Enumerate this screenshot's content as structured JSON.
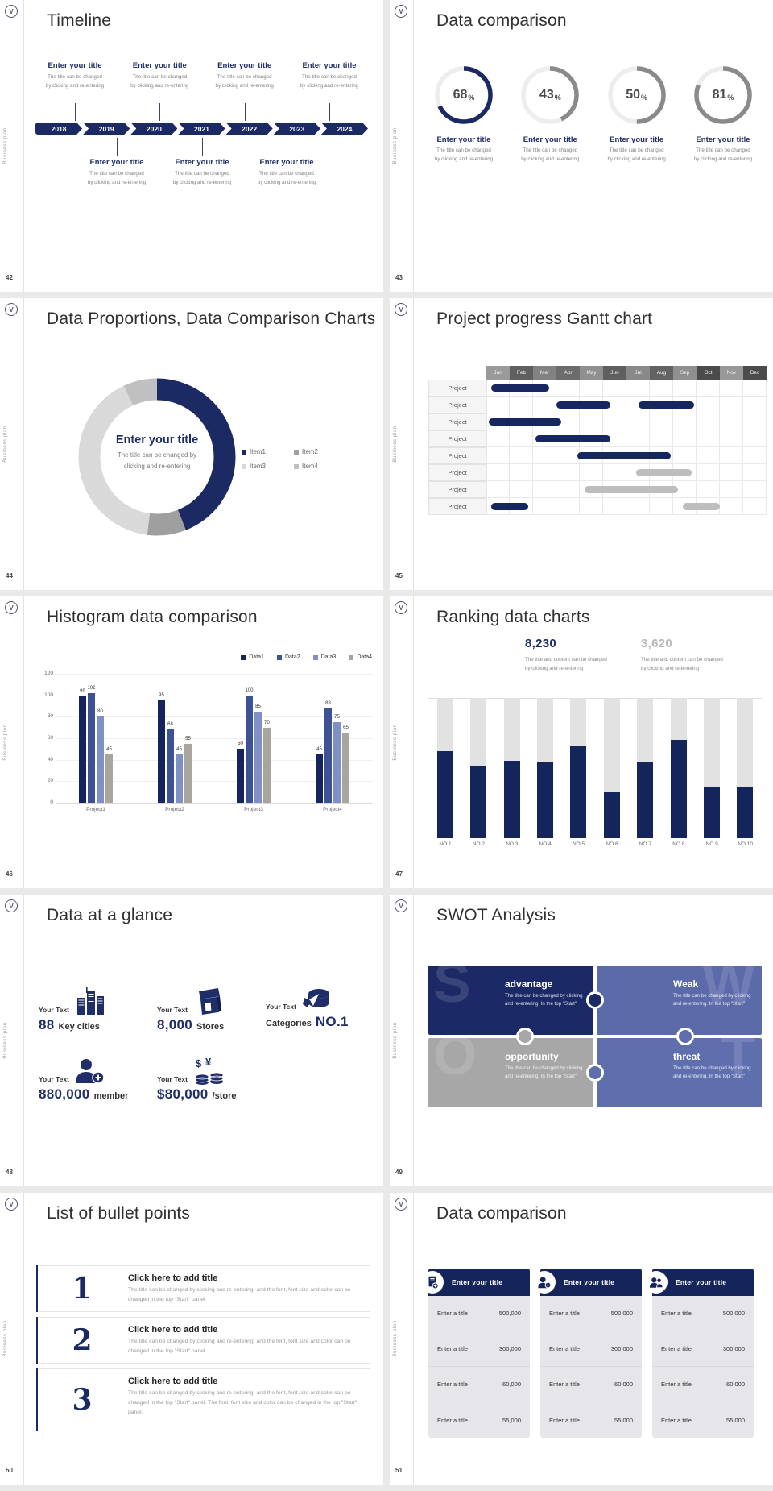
{
  "chrome": {
    "logo_letter": "V",
    "side_label": "Business plan"
  },
  "slides": {
    "timeline": {
      "page_no": "42",
      "title": "Timeline",
      "item_title": "Enter your title",
      "item_desc": [
        "The title can be changed",
        "by clicking and re-entering"
      ],
      "years": [
        "2018",
        "2019",
        "2020",
        "2021",
        "2022",
        "2023",
        "2024"
      ]
    },
    "rings": {
      "page_no": "43",
      "title": "Data comparison",
      "item_title": "Enter your title",
      "item_desc": [
        "The title can be changed",
        "by clicking and re-entering"
      ],
      "chart_data": {
        "type": "donut-rings",
        "values": [
          68,
          43,
          50,
          81
        ],
        "unit": "%",
        "active_color": "#1b2a63",
        "inactive_color": "#8a8a8a",
        "track_color": "#ededed"
      }
    },
    "donut": {
      "page_no": "44",
      "title": "Data Proportions, Data Comparison Charts",
      "center_title": "Enter your title",
      "center_desc": [
        "The title can be changed by",
        "clicking and re-entering"
      ],
      "chart_data": {
        "type": "pie",
        "legend": [
          "Item1",
          "Item2",
          "Item3",
          "Item4"
        ],
        "values": [
          44,
          8,
          41,
          7
        ],
        "colors": [
          "#1b2a63",
          "#9f9f9f",
          "#d9d9d9",
          "#c0c0c0"
        ]
      }
    },
    "gantt": {
      "page_no": "45",
      "title": "Project progress Gantt chart",
      "row_label": "Project",
      "chart_data": {
        "type": "gantt",
        "months": [
          "Jan",
          "Feb",
          "Mar",
          "Apr",
          "May",
          "Jun",
          "Jul",
          "Aug",
          "Sep",
          "Oct",
          "Nov",
          "Dec"
        ],
        "header_shades": [
          "#9a9a9a",
          "#5f5f5f",
          "#828282",
          "#6c6c6c",
          "#8f8f8f",
          "#5f5f5f",
          "#898989",
          "#626262",
          "#8f8f8f",
          "#4b4b4b",
          "#989898",
          "#4b4b4b"
        ],
        "row_count": 8,
        "bar_colors": {
          "navy": "#16265e",
          "gray": "#bdbdbd"
        },
        "bars": [
          {
            "row": 0,
            "start": 0.2,
            "end": 2.7,
            "color": "navy"
          },
          {
            "row": 1,
            "start": 3.0,
            "end": 5.3,
            "color": "navy"
          },
          {
            "row": 1,
            "start": 6.5,
            "end": 8.9,
            "color": "navy"
          },
          {
            "row": 2,
            "start": 0.1,
            "end": 3.2,
            "color": "navy"
          },
          {
            "row": 3,
            "start": 2.1,
            "end": 5.3,
            "color": "navy"
          },
          {
            "row": 4,
            "start": 3.9,
            "end": 7.9,
            "color": "navy"
          },
          {
            "row": 5,
            "start": 6.4,
            "end": 8.8,
            "color": "gray"
          },
          {
            "row": 6,
            "start": 4.2,
            "end": 8.2,
            "color": "gray"
          },
          {
            "row": 7,
            "start": 0.2,
            "end": 1.8,
            "color": "navy"
          },
          {
            "row": 7,
            "start": 8.4,
            "end": 10.0,
            "color": "gray"
          }
        ]
      }
    },
    "histogram": {
      "page_no": "46",
      "title": "Histogram data comparison",
      "chart_data": {
        "type": "bar",
        "categories": [
          "Project1",
          "Project2",
          "Project3",
          "Project4"
        ],
        "series": [
          {
            "name": "Data1",
            "color": "#15245f",
            "values": [
              99,
              95,
              50,
              45
            ]
          },
          {
            "name": "Data2",
            "color": "#3d5295",
            "values": [
              102,
              68,
              100,
              88
            ]
          },
          {
            "name": "Data3",
            "color": "#7e90c5",
            "values": [
              80,
              45,
              85,
              75
            ]
          },
          {
            "name": "Data4",
            "color": "#a8a59e",
            "values": [
              45,
              55,
              70,
              65
            ]
          }
        ],
        "ylim": [
          0,
          120
        ],
        "yticks": [
          0,
          20,
          40,
          60,
          80,
          100,
          120
        ]
      }
    },
    "ranking": {
      "page_no": "47",
      "title": "Ranking data charts",
      "stat_primary": {
        "value": "8,230",
        "desc": [
          "The title and content can be changed",
          "by clicking and re-entering"
        ]
      },
      "stat_secondary": {
        "value": "3,620",
        "desc": [
          "The title and content can be changed",
          "by clicking and re-entering"
        ]
      },
      "chart_data": {
        "type": "bar",
        "categories": [
          "NO.1",
          "NO.2",
          "NO.3",
          "NO.4",
          "NO.5",
          "NO.6",
          "NO.7",
          "NO.8",
          "NO.9",
          "NO.10"
        ],
        "values_pct": [
          62,
          52,
          55,
          54,
          66,
          33,
          54,
          70,
          37,
          37
        ],
        "bar_color": "#14255c",
        "track_color": "#e2e2e2"
      }
    },
    "glance": {
      "page_no": "48",
      "title": "Data at a glance",
      "items": [
        {
          "label": "Your Text",
          "value": "88",
          "unit": "Key cities",
          "icon": "city-icon"
        },
        {
          "label": "Your Text",
          "value": "8,000",
          "unit": "Stores",
          "icon": "store-icon"
        },
        {
          "label": "Your Text",
          "prefix": "Categories",
          "value": "NO.1",
          "unit": "",
          "icon": "categories-icon"
        },
        {
          "label": "Your Text",
          "value": "880,000",
          "unit": "member",
          "icon": "member-plus-icon"
        },
        {
          "label": "Your Text",
          "value": "$80,000",
          "unit": "/store",
          "icon": "coins-icon"
        }
      ]
    },
    "swot": {
      "page_no": "49",
      "title": "SWOT Analysis",
      "quadrants": [
        {
          "letter": "S",
          "heading": "advantage",
          "desc": [
            "The title can be changed by clicking",
            "and re-entering. In the top \"Start\""
          ],
          "color": "#1b2a66"
        },
        {
          "letter": "W",
          "heading": "Weak",
          "desc": [
            "The title can be changed by clicking",
            "and re-entering. In the top \"Start\""
          ],
          "color": "#5b6aa9"
        },
        {
          "letter": "O",
          "heading": "opportunity",
          "desc": [
            "The title can be changed by clicking",
            "and re-entering. In the top \"Start\""
          ],
          "color": "#a7a7a7"
        },
        {
          "letter": "T",
          "heading": "threat",
          "desc": [
            "The title can be changed by clicking",
            "and re-entering. In the top \"Start\""
          ],
          "color": "#5f6fae"
        }
      ]
    },
    "bullets": {
      "page_no": "50",
      "title": "List of bullet points",
      "items": [
        {
          "number": "1",
          "heading": "Click here to add title",
          "body": "The title can be changed by clicking and re-entering, and the font, font size and color can be changed in the top \"Start\" panel"
        },
        {
          "number": "2",
          "heading": "Click here to add title",
          "body": "The title can be changed by clicking and re-entering, and the font, font size and color can be changed in the top \"Start\" panel"
        },
        {
          "number": "3",
          "heading": "Click here to add title",
          "body": "The title can be changed by clicking and re-entering, and the font, font size and color can be changed in the top \"Start\" panel. The font, font size and color can be changed in the top \"Start\" panel."
        }
      ]
    },
    "tables": {
      "page_no": "51",
      "title": "Data comparison",
      "cards": [
        {
          "header": "Enter your title",
          "icon": "document-plus-icon",
          "rows": [
            {
              "label": "Enter a title",
              "value": "500,000"
            },
            {
              "label": "Enter a title",
              "value": "300,000"
            },
            {
              "label": "Enter a title",
              "value": "60,000"
            },
            {
              "label": "Enter a title",
              "value": "55,000"
            }
          ]
        },
        {
          "header": "Enter your title",
          "icon": "person-plus-icon",
          "rows": [
            {
              "label": "Enter a title",
              "value": "500,000"
            },
            {
              "label": "Enter a title",
              "value": "300,000"
            },
            {
              "label": "Enter a title",
              "value": "60,000"
            },
            {
              "label": "Enter a title",
              "value": "55,000"
            }
          ]
        },
        {
          "header": "Enter your title",
          "icon": "people-icon",
          "rows": [
            {
              "label": "Enter a title",
              "value": "500,000"
            },
            {
              "label": "Enter a title",
              "value": "300,000"
            },
            {
              "label": "Enter a title",
              "value": "60,000"
            },
            {
              "label": "Enter a title",
              "value": "55,000"
            }
          ]
        }
      ]
    }
  }
}
